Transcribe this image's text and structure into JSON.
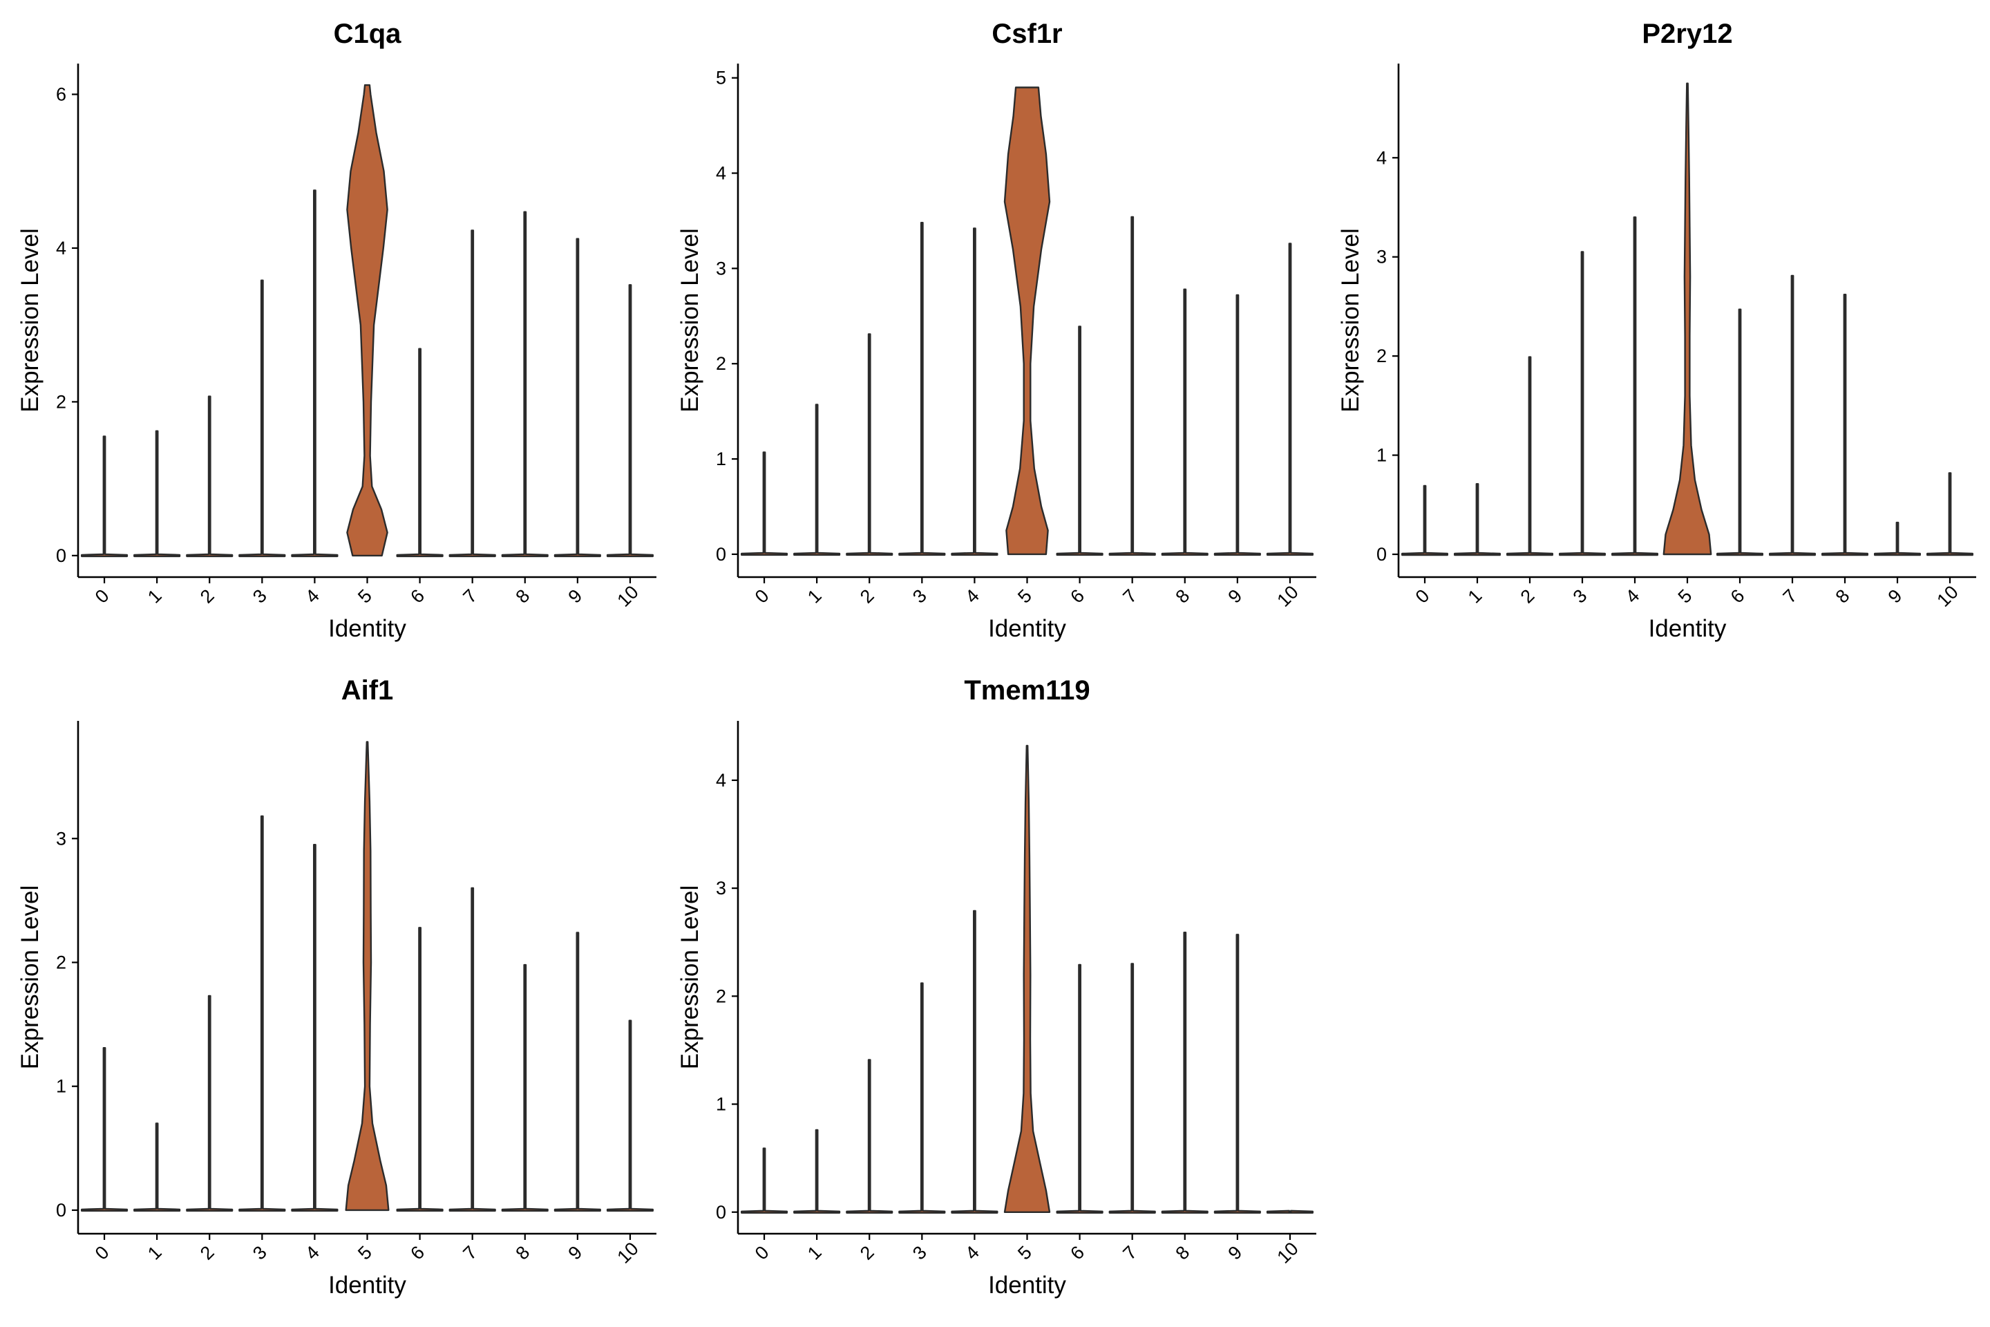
{
  "chart_data": [
    {
      "type": "violin",
      "title": "C1qa",
      "xlabel": "Identity",
      "ylabel": "Expression Level",
      "categories": [
        "0",
        "1",
        "2",
        "3",
        "4",
        "5",
        "6",
        "7",
        "8",
        "9",
        "10"
      ],
      "ylim": [
        -0.28,
        6.4
      ],
      "yticks": [
        "0",
        "2",
        "4",
        "6"
      ],
      "max_values": [
        1.55,
        1.62,
        2.07,
        3.58,
        4.75,
        6.12,
        2.69,
        4.23,
        4.47,
        4.12,
        3.52
      ],
      "fill": "#B9643A",
      "highlight_profile": [
        [
          0,
          0.62
        ],
        [
          0.3,
          0.85
        ],
        [
          0.6,
          0.6
        ],
        [
          0.9,
          0.2
        ],
        [
          1.3,
          0.12
        ],
        [
          2.0,
          0.16
        ],
        [
          3.0,
          0.28
        ],
        [
          4.0,
          0.68
        ],
        [
          4.5,
          0.85
        ],
        [
          5.0,
          0.7
        ],
        [
          5.5,
          0.38
        ],
        [
          6.0,
          0.14
        ],
        [
          6.12,
          0.1
        ]
      ]
    },
    {
      "type": "violin",
      "title": "Csf1r",
      "xlabel": "Identity",
      "ylabel": "Expression Level",
      "categories": [
        "0",
        "1",
        "2",
        "3",
        "4",
        "5",
        "6",
        "7",
        "8",
        "9",
        "10"
      ],
      "ylim": [
        -0.24,
        5.15
      ],
      "yticks": [
        "0",
        "1",
        "2",
        "3",
        "4",
        "5"
      ],
      "max_values": [
        1.07,
        1.57,
        2.31,
        3.48,
        3.42,
        4.9,
        2.39,
        3.54,
        2.78,
        2.72,
        3.26
      ],
      "fill": "#B9643A",
      "highlight_profile": [
        [
          0,
          0.8
        ],
        [
          0.25,
          0.88
        ],
        [
          0.5,
          0.6
        ],
        [
          0.9,
          0.3
        ],
        [
          1.4,
          0.14
        ],
        [
          2.0,
          0.14
        ],
        [
          2.6,
          0.28
        ],
        [
          3.2,
          0.6
        ],
        [
          3.7,
          0.95
        ],
        [
          4.2,
          0.8
        ],
        [
          4.6,
          0.58
        ],
        [
          4.9,
          0.48
        ]
      ]
    },
    {
      "type": "violin",
      "title": "P2ry12",
      "xlabel": "Identity",
      "ylabel": "Expression Level",
      "categories": [
        "0",
        "1",
        "2",
        "3",
        "4",
        "5",
        "6",
        "7",
        "8",
        "9",
        "10"
      ],
      "ylim": [
        -0.23,
        4.95
      ],
      "yticks": [
        "0",
        "1",
        "2",
        "3",
        "4"
      ],
      "max_values": [
        0.69,
        0.71,
        1.99,
        3.05,
        3.4,
        4.75,
        2.47,
        2.81,
        2.62,
        0.32,
        0.82
      ],
      "fill": "#B9643A",
      "highlight_profile": [
        [
          0,
          1.0
        ],
        [
          0.2,
          0.92
        ],
        [
          0.45,
          0.6
        ],
        [
          0.75,
          0.32
        ],
        [
          1.1,
          0.16
        ],
        [
          1.6,
          0.1
        ],
        [
          2.2,
          0.1
        ],
        [
          2.8,
          0.12
        ],
        [
          3.3,
          0.1
        ],
        [
          3.8,
          0.08
        ],
        [
          4.3,
          0.05
        ],
        [
          4.75,
          0.02
        ]
      ]
    },
    {
      "type": "violin",
      "title": "Aif1",
      "xlabel": "Identity",
      "ylabel": "Expression Level",
      "categories": [
        "0",
        "1",
        "2",
        "3",
        "4",
        "5",
        "6",
        "7",
        "8",
        "9",
        "10"
      ],
      "ylim": [
        -0.19,
        3.95
      ],
      "yticks": [
        "0",
        "1",
        "2",
        "3"
      ],
      "max_values": [
        1.31,
        0.7,
        1.73,
        3.18,
        2.95,
        3.78,
        2.28,
        2.6,
        1.98,
        2.24,
        1.53
      ],
      "fill": "#B9643A",
      "highlight_profile": [
        [
          0,
          0.9
        ],
        [
          0.2,
          0.8
        ],
        [
          0.4,
          0.55
        ],
        [
          0.7,
          0.22
        ],
        [
          1.0,
          0.1
        ],
        [
          1.5,
          0.12
        ],
        [
          2.0,
          0.16
        ],
        [
          2.4,
          0.15
        ],
        [
          2.9,
          0.14
        ],
        [
          3.3,
          0.1
        ],
        [
          3.6,
          0.05
        ],
        [
          3.78,
          0.02
        ]
      ]
    },
    {
      "type": "violin",
      "title": "Tmem119",
      "xlabel": "Identity",
      "ylabel": "Expression Level",
      "categories": [
        "0",
        "1",
        "2",
        "3",
        "4",
        "5",
        "6",
        "7",
        "8",
        "9",
        "10"
      ],
      "ylim": [
        -0.2,
        4.55
      ],
      "yticks": [
        "0",
        "1",
        "2",
        "3",
        "4"
      ],
      "max_values": [
        0.59,
        0.76,
        1.41,
        2.12,
        2.79,
        4.32,
        2.29,
        2.3,
        2.59,
        2.57,
        0.0
      ],
      "fill": "#B9643A",
      "highlight_profile": [
        [
          0,
          0.95
        ],
        [
          0.2,
          0.8
        ],
        [
          0.45,
          0.55
        ],
        [
          0.75,
          0.25
        ],
        [
          1.1,
          0.15
        ],
        [
          1.6,
          0.13
        ],
        [
          2.2,
          0.14
        ],
        [
          2.8,
          0.12
        ],
        [
          3.3,
          0.1
        ],
        [
          3.8,
          0.07
        ],
        [
          4.1,
          0.04
        ],
        [
          4.32,
          0.02
        ]
      ]
    }
  ]
}
